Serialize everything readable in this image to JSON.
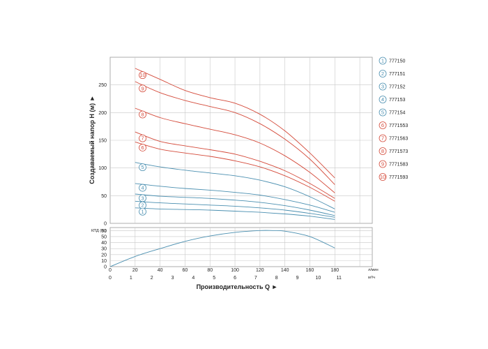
{
  "chart_data": [
    {
      "type": "line",
      "title": "",
      "xlabel": "",
      "ylabel": "Создаваемый напор H (м)",
      "ylim": [
        0,
        300
      ],
      "xlim": [
        0,
        210
      ],
      "grid": true,
      "legend_position": "right",
      "y_ticks": [
        "0",
        "50",
        "100",
        "150",
        "200",
        "250"
      ],
      "series": [
        {
          "marker": "1",
          "name": "777150",
          "color": "#4a8fb0",
          "x": [
            20,
            40,
            60,
            80,
            100,
            120,
            140,
            160,
            180
          ],
          "y": [
            28,
            26,
            25,
            24,
            22,
            20,
            17,
            13,
            7
          ]
        },
        {
          "marker": "2",
          "name": "777151",
          "color": "#4a8fb0",
          "x": [
            20,
            40,
            60,
            80,
            100,
            120,
            140,
            160,
            180
          ],
          "y": [
            40,
            37,
            35,
            33,
            31,
            28,
            24,
            18,
            11
          ]
        },
        {
          "marker": "3",
          "name": "777152",
          "color": "#4a8fb0",
          "x": [
            20,
            40,
            60,
            80,
            100,
            120,
            140,
            160,
            180
          ],
          "y": [
            53,
            49,
            47,
            45,
            42,
            38,
            32,
            24,
            14
          ]
        },
        {
          "marker": "4",
          "name": "777153",
          "color": "#4a8fb0",
          "x": [
            20,
            40,
            60,
            80,
            100,
            120,
            140,
            160,
            180
          ],
          "y": [
            72,
            67,
            63,
            60,
            56,
            51,
            43,
            33,
            20
          ]
        },
        {
          "marker": "5",
          "name": "777154",
          "color": "#4a8fb0",
          "x": [
            20,
            40,
            60,
            80,
            100,
            120,
            140,
            160,
            180
          ],
          "y": [
            110,
            102,
            96,
            91,
            86,
            78,
            66,
            48,
            26
          ]
        },
        {
          "marker": "6",
          "name": "7771553",
          "color": "#d44a3a",
          "x": [
            20,
            40,
            60,
            80,
            100,
            120,
            140,
            160,
            180
          ],
          "y": [
            147,
            134,
            127,
            121,
            113,
            102,
            86,
            65,
            40
          ]
        },
        {
          "marker": "7",
          "name": "7771563",
          "color": "#d44a3a",
          "x": [
            20,
            40,
            60,
            80,
            100,
            120,
            140,
            160,
            180
          ],
          "y": [
            165,
            148,
            140,
            133,
            125,
            112,
            95,
            72,
            45
          ]
        },
        {
          "marker": "8",
          "name": "7771573",
          "color": "#d44a3a",
          "x": [
            20,
            40,
            60,
            80,
            100,
            120,
            140,
            160,
            180
          ],
          "y": [
            208,
            191,
            180,
            170,
            160,
            145,
            122,
            92,
            55
          ]
        },
        {
          "marker": "9",
          "name": "7771583",
          "color": "#d44a3a",
          "x": [
            20,
            40,
            60,
            80,
            100,
            120,
            140,
            160,
            180
          ],
          "y": [
            256,
            236,
            222,
            211,
            200,
            180,
            152,
            116,
            70
          ]
        },
        {
          "marker": "10",
          "name": "7771593",
          "color": "#d44a3a",
          "x": [
            20,
            40,
            60,
            80,
            100,
            120,
            140,
            160,
            180
          ],
          "y": [
            280,
            260,
            240,
            227,
            217,
            197,
            167,
            127,
            82
          ]
        }
      ]
    },
    {
      "type": "line",
      "title": "",
      "xlabel": "Производительность Q",
      "ylabel": "КПД (%)",
      "ylim": [
        0,
        65
      ],
      "xlim": [
        0,
        210
      ],
      "grid": true,
      "y_ticks": [
        "0",
        "10",
        "20",
        "30",
        "40",
        "50",
        "60"
      ],
      "x_ticks_primary": [
        "0",
        "20",
        "40",
        "60",
        "80",
        "100",
        "120",
        "140",
        "160",
        "180"
      ],
      "x_unit_primary": "л/мин",
      "x_ticks_secondary": [
        "0",
        "1",
        "2",
        "3",
        "4",
        "5",
        "6",
        "7",
        "8",
        "9",
        "10",
        "11"
      ],
      "x_unit_secondary": "м³/ч",
      "series": [
        {
          "name": "",
          "color": "#4a8fb0",
          "x": [
            0,
            20,
            40,
            60,
            80,
            100,
            120,
            130,
            140,
            160,
            180
          ],
          "y": [
            0,
            17,
            30,
            42,
            51,
            57,
            60,
            60,
            59,
            50,
            31
          ]
        }
      ]
    }
  ]
}
